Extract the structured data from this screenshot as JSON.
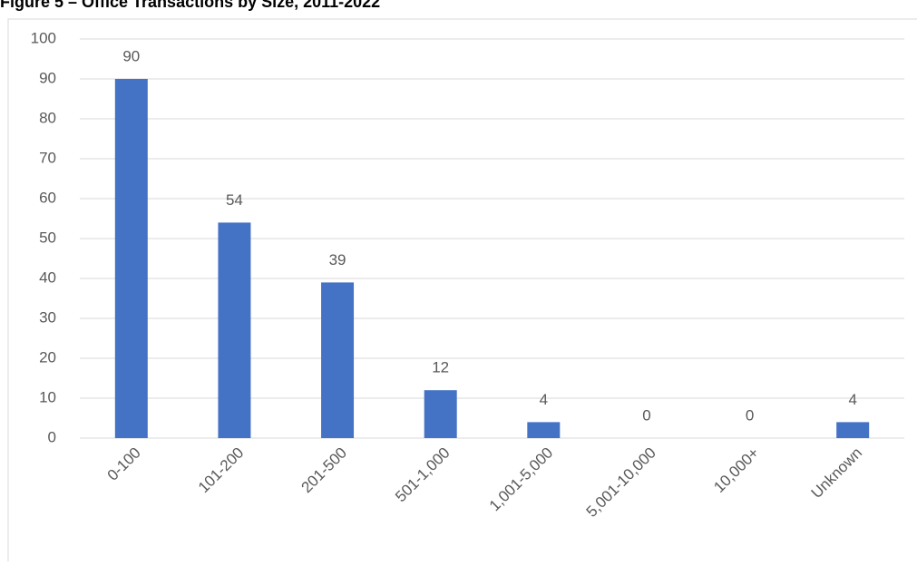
{
  "chart_data": {
    "type": "bar",
    "title": "Figure 5 – Office Transactions by Size, 2011-2022",
    "categories": [
      "0-100",
      "101-200",
      "201-500",
      "501-1,000",
      "1,001-5,000",
      "5,001-10,000",
      "10,000+",
      "Unknown"
    ],
    "values": [
      90,
      54,
      39,
      12,
      4,
      0,
      0,
      4
    ],
    "color": "#4472c4",
    "ylim": [
      0,
      100
    ],
    "yticks": [
      0,
      10,
      20,
      30,
      40,
      50,
      60,
      70,
      80,
      90,
      100
    ],
    "grid": true
  }
}
